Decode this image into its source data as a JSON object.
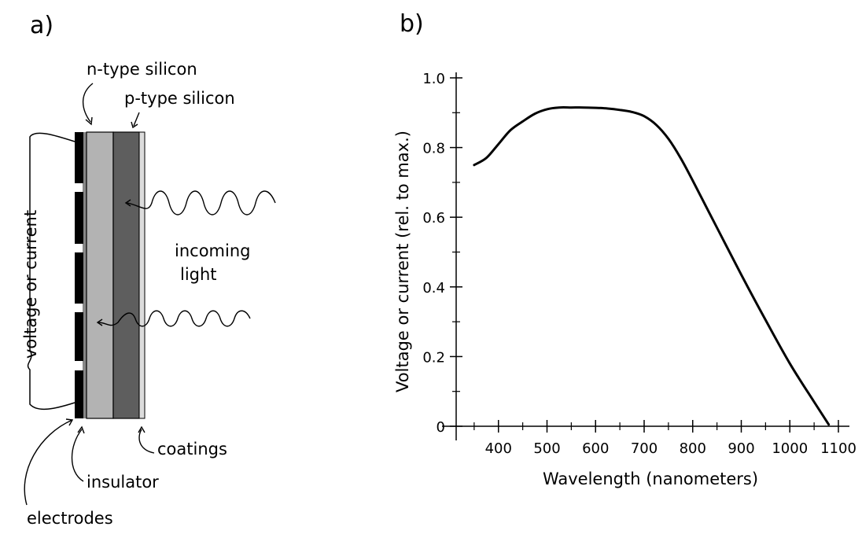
{
  "panel_a": {
    "label": "a)",
    "annotations": {
      "n_type": "n-type silicon",
      "p_type": "p-type silicon",
      "incoming_light_1": "incoming",
      "incoming_light_2": "light",
      "voltage_or_current": "voltage or current",
      "coatings": "coatings",
      "insulator": "insulator",
      "electrodes": "electrodes"
    },
    "colors": {
      "n_type": "#b3b3b3",
      "p_type": "#5e5e5e",
      "coating": "#dcdcdc",
      "electrode": "#000000"
    }
  },
  "panel_b": {
    "label": "b)"
  },
  "chart_data": {
    "type": "line",
    "title": "",
    "xlabel": "Wavelength (nanometers)",
    "ylabel": "Voltage or current (rel. to max.)",
    "xlim": [
      300,
      1100
    ],
    "ylim": [
      0,
      1.0
    ],
    "xticks": [
      400,
      500,
      600,
      700,
      800,
      900,
      1000,
      1100
    ],
    "yticks": [
      0,
      0.2,
      0.4,
      0.6,
      0.8,
      1.0
    ],
    "ytick_labels": [
      "0",
      "0.2",
      "0.4",
      "0.6",
      "0.8",
      "1.0"
    ],
    "series": [
      {
        "x": [
          350,
          375,
          400,
          425,
          450,
          475,
          500,
          525,
          550,
          575,
          600,
          625,
          650,
          675,
          700,
          725,
          750,
          775,
          800,
          850,
          900,
          950,
          1000,
          1050,
          1080
        ],
        "y": [
          0.75,
          0.77,
          0.81,
          0.85,
          0.875,
          0.897,
          0.91,
          0.915,
          0.915,
          0.915,
          0.914,
          0.912,
          0.908,
          0.902,
          0.89,
          0.865,
          0.825,
          0.77,
          0.705,
          0.57,
          0.435,
          0.305,
          0.18,
          0.07,
          0.005
        ]
      }
    ]
  }
}
